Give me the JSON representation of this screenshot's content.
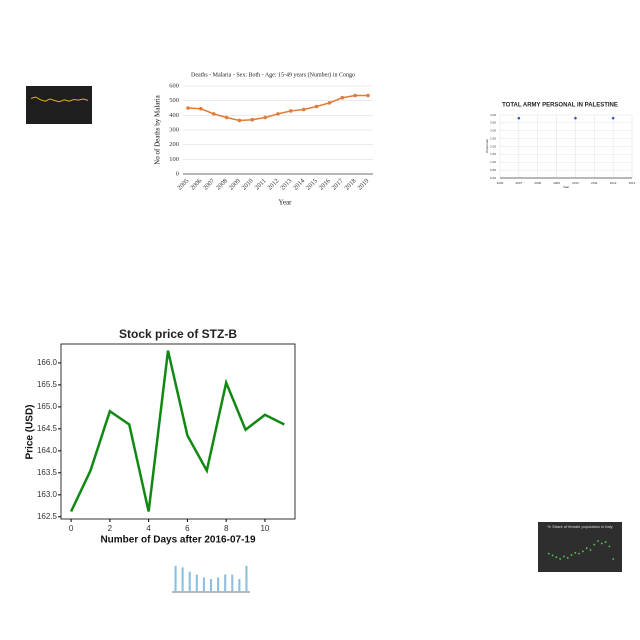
{
  "chart_data": [
    {
      "type": "line",
      "title": "Deaths - Malaria - Sex: Both - Age: 15-49 years (Number) in Congo",
      "x_label": "Year",
      "y_label": "No of Deaths by Malaria",
      "categories": [
        "2005",
        "2006",
        "2007",
        "2008",
        "2009",
        "2010",
        "2011",
        "2012",
        "2013",
        "2014",
        "2015",
        "2016",
        "2017",
        "2018",
        "2019"
      ],
      "values": [
        450,
        445,
        410,
        385,
        365,
        370,
        385,
        410,
        430,
        440,
        460,
        485,
        520,
        535,
        535
      ],
      "color": "#e07b39",
      "ylim": [
        0,
        600
      ],
      "yticks": [
        0,
        100,
        200,
        300,
        400,
        500,
        600
      ],
      "grid": true
    },
    {
      "type": "line",
      "title": "Stock price of STZ-B",
      "x_label": "Number of Days after 2016-07-19",
      "y_label": "Price (USD)",
      "x": [
        0,
        1,
        2,
        3,
        4,
        5,
        6,
        7,
        8,
        9,
        10,
        11
      ],
      "values": [
        162.62,
        163.55,
        164.9,
        164.6,
        162.62,
        166.28,
        164.35,
        163.55,
        165.55,
        164.48,
        164.82,
        164.6
      ],
      "color": "#118811",
      "xlim": [
        -0.52,
        11.55
      ],
      "xticks": [
        0,
        2,
        4,
        6,
        8,
        10
      ],
      "ylim": [
        162.45,
        166.43
      ],
      "yticks": [
        {
          "value": 162.5,
          "label": "162.5"
        },
        {
          "value": 163,
          "label": "163.0"
        },
        {
          "value": 163.5,
          "label": "163.5"
        },
        {
          "value": 164,
          "label": "164.0"
        },
        {
          "value": 164.5,
          "label": "164.5"
        },
        {
          "value": 165,
          "label": "165.0"
        },
        {
          "value": 165.5,
          "label": "165.5"
        },
        {
          "value": 166,
          "label": "166.0"
        }
      ],
      "grid": false
    },
    {
      "type": "scatter",
      "title": "TOTAL ARMY PERSONAL IN PALESTINE",
      "x_label": "Year",
      "y_label": "Personnel",
      "x": [
        2007,
        2010,
        2012
      ],
      "values": [
        3.8,
        3.8,
        3.8
      ],
      "color": "#3355cc",
      "xlim": [
        2006,
        2013
      ],
      "xticks": [
        2006,
        2007,
        2008,
        2009,
        2010,
        2011,
        2012,
        2013
      ],
      "ylim": [
        0,
        4
      ],
      "yticks": [
        {
          "value": 0,
          "label": "0.00"
        },
        {
          "value": 0.5,
          "label": "0.50"
        },
        {
          "value": 1,
          "label": "1.00"
        },
        {
          "value": 1.5,
          "label": "1.50"
        },
        {
          "value": 2,
          "label": "2.00"
        },
        {
          "value": 2.5,
          "label": "2.50"
        },
        {
          "value": 3,
          "label": "3.00"
        },
        {
          "value": 3.5,
          "label": "3.50"
        },
        {
          "value": 4,
          "label": "4.00"
        }
      ],
      "grid": true
    },
    {
      "type": "line",
      "x": [
        0,
        1,
        2,
        3,
        4,
        5,
        6,
        7,
        8,
        9,
        10,
        11,
        12
      ],
      "values": [
        7,
        7.5,
        6.5,
        6,
        6.8,
        6.2,
        5.8,
        6.5,
        6,
        6.6,
        6.4,
        6.8,
        6.3
      ],
      "color": "#e0b020",
      "xlim": [
        0,
        12
      ],
      "ylim": [
        0,
        10
      ],
      "grid": false
    },
    {
      "type": "scatter",
      "title": "% Share of female population in Italy",
      "x": [
        1,
        2,
        3,
        4,
        5,
        6,
        7,
        8,
        9,
        10,
        11,
        12,
        13,
        14,
        15,
        16,
        17,
        18
      ],
      "values": [
        4,
        3.5,
        3,
        2.5,
        3.2,
        2.8,
        3.6,
        4.2,
        4,
        4.6,
        5.5,
        5,
        6.5,
        7.5,
        6.8,
        7.2,
        6,
        2.5
      ],
      "color": "#55cc55",
      "xlim": [
        0,
        19
      ],
      "ylim": [
        0,
        10
      ],
      "grid": false
    },
    {
      "type": "bar",
      "categories": [
        null,
        null,
        null,
        null,
        null,
        null,
        null,
        null,
        null,
        null,
        null
      ],
      "values": [
        9,
        8.5,
        7,
        6,
        5,
        4.5,
        5,
        6,
        6,
        4.5,
        9
      ],
      "color": "#8fbfe0",
      "ylim": [
        0,
        10
      ],
      "grid": true
    }
  ]
}
